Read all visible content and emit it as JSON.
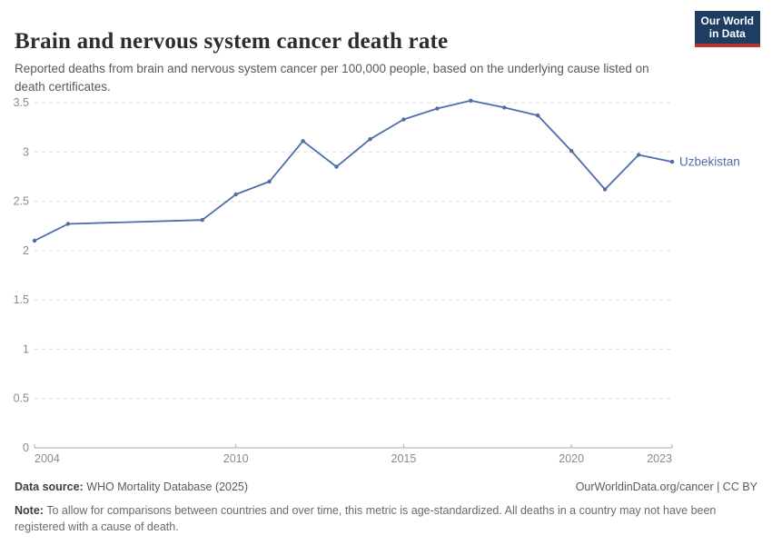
{
  "header": {
    "title": "Brain and nervous system cancer death rate",
    "subtitle": "Reported deaths from brain and nervous system cancer per 100,000 people, based on the underlying cause listed on death certificates.",
    "logo": {
      "line1": "Our World",
      "line2": "in Data",
      "bg_color": "#1d3d63",
      "stripe_color": "#b5332e",
      "text_color": "#ffffff"
    }
  },
  "chart_data": {
    "type": "line",
    "title": "Brain and nervous system cancer death rate",
    "xlabel": "",
    "ylabel": "",
    "unit": "deaths per 100,000 people",
    "xlim": [
      2004,
      2023
    ],
    "ylim": [
      0,
      3.5
    ],
    "x_ticks": [
      2004,
      2010,
      2015,
      2020,
      2023
    ],
    "y_ticks": [
      0,
      0.5,
      1,
      1.5,
      2,
      2.5,
      3,
      3.5
    ],
    "grid": "horizontal-dashed",
    "legend_position": "line-end-label",
    "series": [
      {
        "name": "Uzbekistan",
        "color": "#4d6ea8",
        "points": [
          {
            "year": 2004,
            "value": 2.1
          },
          {
            "year": 2005,
            "value": 2.27
          },
          {
            "year": 2009,
            "value": 2.31
          },
          {
            "year": 2010,
            "value": 2.57
          },
          {
            "year": 2011,
            "value": 2.7
          },
          {
            "year": 2012,
            "value": 3.11
          },
          {
            "year": 2013,
            "value": 2.85
          },
          {
            "year": 2014,
            "value": 3.13
          },
          {
            "year": 2015,
            "value": 3.33
          },
          {
            "year": 2016,
            "value": 3.44
          },
          {
            "year": 2017,
            "value": 3.52
          },
          {
            "year": 2018,
            "value": 3.45
          },
          {
            "year": 2019,
            "value": 3.37
          },
          {
            "year": 2020,
            "value": 3.01
          },
          {
            "year": 2021,
            "value": 2.62
          },
          {
            "year": 2022,
            "value": 2.97
          },
          {
            "year": 2023,
            "value": 2.9
          }
        ]
      }
    ],
    "style": {
      "grid_color": "#dcdcdc",
      "axis_color": "#a8a8a8",
      "tick_label_color": "#8b8b8b"
    }
  },
  "footer": {
    "datasource_label": "Data source:",
    "datasource_value": " WHO Mortality Database (2025)",
    "rights": "OurWorldinData.org/cancer | CC BY",
    "note_label": "Note:",
    "note_value": " To allow for comparisons between countries and over time, this metric is age-standardized. All deaths in a country may not have been registered with a cause of death."
  }
}
